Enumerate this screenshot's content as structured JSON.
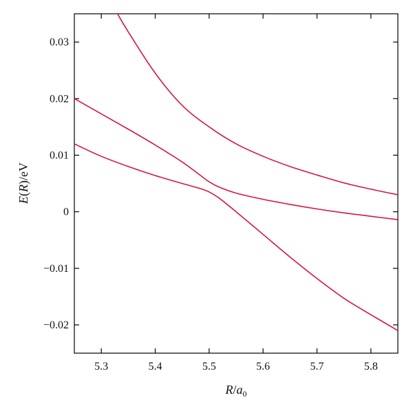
{
  "chart_data": {
    "type": "line",
    "title": "",
    "xlabel": "R/a0",
    "xlabel_parts": {
      "var": "R",
      "slash": "/",
      "base": "a",
      "sub": "0"
    },
    "ylabel": "E(R)/eV",
    "ylabel_parts": {
      "var": "E",
      "open": "(",
      "arg": "R",
      "close": ")",
      "unit": "/eV"
    },
    "xlim": [
      5.25,
      5.85
    ],
    "ylim": [
      -0.025,
      0.035
    ],
    "xticks": [
      5.3,
      5.4,
      5.5,
      5.6,
      5.7,
      5.8
    ],
    "xtick_labels": [
      "5.3",
      "5.4",
      "5.5",
      "5.6",
      "5.7",
      "5.8"
    ],
    "yticks": [
      0.03,
      0.02,
      0.01,
      0,
      -0.01,
      -0.02
    ],
    "ytick_labels": [
      "0.03",
      "0.02",
      "0.01",
      "0",
      "−0.01",
      "−0.02"
    ],
    "grid": false,
    "color": "#d6163a",
    "series": [
      {
        "x": [
          5.33,
          5.35,
          5.4,
          5.45,
          5.5,
          5.55,
          5.6,
          5.65,
          5.7,
          5.75,
          5.8,
          5.85
        ],
        "y": [
          0.035,
          0.0318,
          0.0245,
          0.0188,
          0.015,
          0.012,
          0.0098,
          0.008,
          0.0065,
          0.0051,
          0.004,
          0.003
        ]
      },
      {
        "x": [
          5.25,
          5.3,
          5.35,
          5.4,
          5.45,
          5.48,
          5.5,
          5.52,
          5.55,
          5.6,
          5.65,
          5.7,
          5.75,
          5.8,
          5.85
        ],
        "y": [
          0.02,
          0.0173,
          0.0146,
          0.0118,
          0.0088,
          0.0067,
          0.0053,
          0.0043,
          0.0033,
          0.0022,
          0.0013,
          0.0005,
          -0.0002,
          -0.0008,
          -0.0014
        ]
      },
      {
        "x": [
          5.25,
          5.3,
          5.35,
          5.4,
          5.45,
          5.48,
          5.5,
          5.52,
          5.55,
          5.6,
          5.65,
          5.7,
          5.75,
          5.8,
          5.85
        ],
        "y": [
          0.012,
          0.0098,
          0.008,
          0.0064,
          0.005,
          0.0042,
          0.0035,
          0.0023,
          0.0,
          -0.004,
          -0.008,
          -0.0118,
          -0.0153,
          -0.0182,
          -0.021
        ]
      }
    ]
  }
}
